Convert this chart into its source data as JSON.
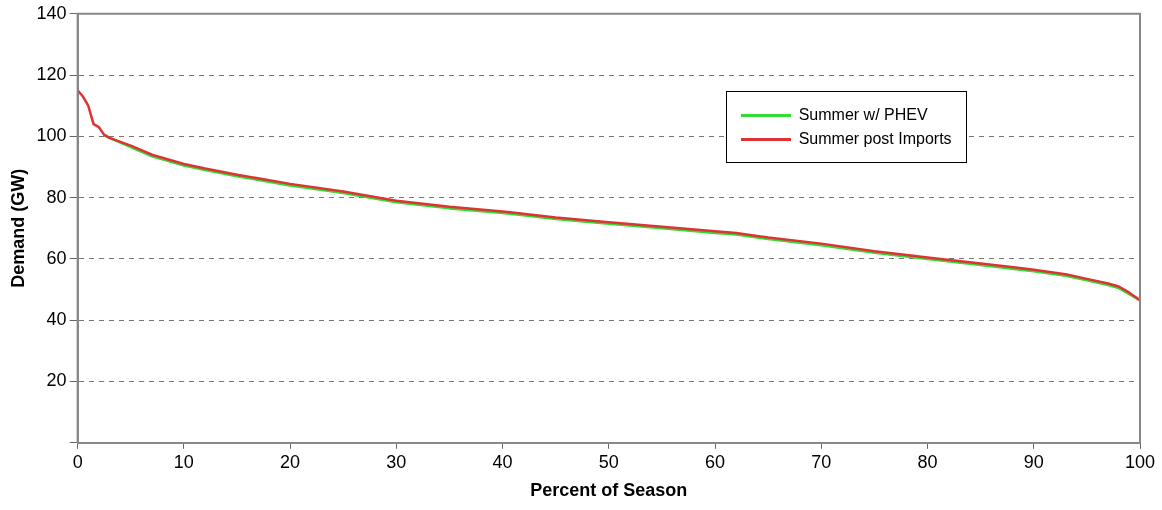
{
  "chart_data": {
    "type": "line",
    "xlabel": "Percent of Season",
    "ylabel": "Demand (GW)",
    "x": [
      0,
      0.5,
      1,
      1.5,
      2,
      2.5,
      3,
      5,
      7,
      10,
      12,
      15,
      20,
      25,
      30,
      35,
      40,
      45,
      50,
      55,
      60,
      62,
      65,
      70,
      75,
      80,
      85,
      90,
      93,
      95,
      97,
      98,
      99,
      100
    ],
    "series": [
      {
        "name": "Summer w/ PHEV",
        "color": "#33dd33",
        "values": [
          null,
          null,
          null,
          null,
          null,
          100.5,
          99.5,
          96.5,
          93.5,
          90.5,
          89,
          87,
          84,
          81.5,
          78.5,
          76.5,
          75,
          73,
          71.5,
          70,
          68.5,
          68,
          66.5,
          64.5,
          62,
          60,
          58,
          56,
          54.5,
          53,
          51.5,
          50.5,
          48.5,
          46.5
        ]
      },
      {
        "name": "Summer post Imports",
        "color": "#dd3333",
        "values": [
          115,
          113,
          110,
          104,
          103,
          100.5,
          99.5,
          97,
          94,
          91,
          89.5,
          87.5,
          84.5,
          82,
          79,
          77,
          75.5,
          73.5,
          72,
          70.5,
          69,
          68.5,
          67,
          65,
          62.5,
          60.5,
          58.5,
          56.5,
          55,
          53.5,
          52,
          51,
          49,
          46.5
        ]
      }
    ],
    "xlim": [
      0,
      100
    ],
    "xticks": [
      0,
      10,
      20,
      30,
      40,
      50,
      60,
      70,
      80,
      90,
      100
    ],
    "ylim": [
      0,
      140
    ],
    "yticks": [
      {
        "value": 0,
        "label": null
      },
      20,
      40,
      60,
      80,
      100,
      120,
      140
    ],
    "grid": "y",
    "legend": "top right",
    "marker": "none",
    "line_style": "solid"
  }
}
